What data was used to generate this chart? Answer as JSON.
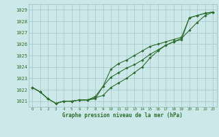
{
  "title": "Graphe pression niveau de la mer (hPa)",
  "bg_color": "#cce8e8",
  "grid_color": "#aacccc",
  "line_color": "#2d6e2d",
  "xlim": [
    -0.5,
    23.5
  ],
  "ylim": [
    1020.5,
    1029.5
  ],
  "yticks": [
    1021,
    1022,
    1023,
    1024,
    1025,
    1026,
    1027,
    1028,
    1029
  ],
  "xticks": [
    0,
    1,
    2,
    3,
    4,
    5,
    6,
    7,
    8,
    9,
    10,
    11,
    12,
    13,
    14,
    15,
    16,
    17,
    18,
    19,
    20,
    21,
    22,
    23
  ],
  "series1": {
    "x": [
      0,
      1,
      2,
      3,
      4,
      5,
      6,
      7,
      8,
      9,
      10,
      11,
      12,
      13,
      14,
      15,
      16,
      17,
      18,
      19,
      20,
      21,
      22,
      23
    ],
    "y": [
      1022.2,
      1021.8,
      1021.2,
      1020.8,
      1021.0,
      1021.0,
      1021.1,
      1021.1,
      1021.2,
      1022.3,
      1023.1,
      1023.5,
      1023.9,
      1024.2,
      1024.6,
      1025.1,
      1025.5,
      1025.9,
      1026.2,
      1026.4,
      1028.3,
      1028.5,
      1028.7,
      1028.8
    ]
  },
  "series2": {
    "x": [
      0,
      1,
      2,
      3,
      4,
      5,
      6,
      7,
      8,
      9,
      10,
      11,
      12,
      13,
      14,
      15,
      16,
      17,
      18,
      19,
      20,
      21,
      22,
      23
    ],
    "y": [
      1022.2,
      1021.8,
      1021.2,
      1020.8,
      1021.0,
      1021.0,
      1021.1,
      1021.1,
      1021.4,
      1022.3,
      1023.8,
      1024.3,
      1024.6,
      1025.0,
      1025.4,
      1025.8,
      1026.0,
      1026.2,
      1026.4,
      1026.6,
      1028.3,
      1028.5,
      1028.7,
      1028.8
    ]
  },
  "series3": {
    "x": [
      0,
      1,
      2,
      3,
      4,
      5,
      6,
      7,
      8,
      9,
      10,
      11,
      12,
      13,
      14,
      15,
      16,
      17,
      18,
      19,
      20,
      21,
      22,
      23
    ],
    "y": [
      1022.2,
      1021.8,
      1021.2,
      1020.8,
      1021.0,
      1021.0,
      1021.1,
      1021.1,
      1021.3,
      1021.5,
      1022.2,
      1022.6,
      1023.0,
      1023.5,
      1024.0,
      1024.8,
      1025.4,
      1025.9,
      1026.2,
      1026.5,
      1027.2,
      1027.9,
      1028.5,
      1028.8
    ]
  }
}
